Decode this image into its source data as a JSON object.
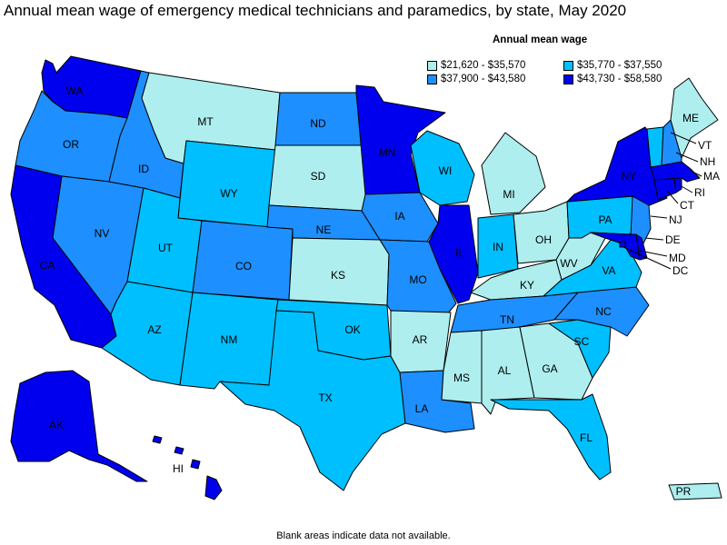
{
  "title": "Annual mean wage of emergency medical technicians and paramedics, by state, May 2020",
  "legend": {
    "title": "Annual mean wage",
    "items": [
      {
        "label": "$21,620 - $35,570",
        "color": "#aeeeee"
      },
      {
        "label": "$35,770 - $37,550",
        "color": "#00bfff"
      },
      {
        "label": "$37,900 - $43,580",
        "color": "#1e8fff"
      },
      {
        "label": "$43,730 - $58,580",
        "color": "#0000ee"
      }
    ]
  },
  "footnote": "Blank areas indicate data not available.",
  "colors": {
    "bin1": "#aeeeee",
    "bin2": "#00bfff",
    "bin3": "#1e8fff",
    "bin4": "#0000ee",
    "border": "#000000"
  },
  "states": [
    {
      "code": "WA",
      "label": "WA",
      "bin": 4
    },
    {
      "code": "OR",
      "label": "OR",
      "bin": 3
    },
    {
      "code": "CA",
      "label": "CA",
      "bin": 4
    },
    {
      "code": "NV",
      "label": "NV",
      "bin": 3
    },
    {
      "code": "ID",
      "label": "ID",
      "bin": 3
    },
    {
      "code": "MT",
      "label": "MT",
      "bin": 1
    },
    {
      "code": "WY",
      "label": "WY",
      "bin": 2
    },
    {
      "code": "UT",
      "label": "UT",
      "bin": 2
    },
    {
      "code": "AZ",
      "label": "AZ",
      "bin": 2
    },
    {
      "code": "CO",
      "label": "CO",
      "bin": 3
    },
    {
      "code": "NM",
      "label": "NM",
      "bin": 2
    },
    {
      "code": "ND",
      "label": "ND",
      "bin": 3
    },
    {
      "code": "SD",
      "label": "SD",
      "bin": 1
    },
    {
      "code": "NE",
      "label": "NE",
      "bin": 3
    },
    {
      "code": "KS",
      "label": "KS",
      "bin": 1
    },
    {
      "code": "OK",
      "label": "OK",
      "bin": 2
    },
    {
      "code": "TX",
      "label": "TX",
      "bin": 2
    },
    {
      "code": "MN",
      "label": "MN",
      "bin": 4
    },
    {
      "code": "IA",
      "label": "IA",
      "bin": 3
    },
    {
      "code": "MO",
      "label": "MO",
      "bin": 3
    },
    {
      "code": "AR",
      "label": "AR",
      "bin": 1
    },
    {
      "code": "LA",
      "label": "LA",
      "bin": 3
    },
    {
      "code": "WI",
      "label": "WI",
      "bin": 2
    },
    {
      "code": "IL",
      "label": "IL",
      "bin": 4
    },
    {
      "code": "MI",
      "label": "MI",
      "bin": 1
    },
    {
      "code": "IN",
      "label": "IN",
      "bin": 2
    },
    {
      "code": "OH",
      "label": "OH",
      "bin": 1
    },
    {
      "code": "KY",
      "label": "KY",
      "bin": 1
    },
    {
      "code": "TN",
      "label": "TN",
      "bin": 3
    },
    {
      "code": "MS",
      "label": "MS",
      "bin": 1
    },
    {
      "code": "AL",
      "label": "AL",
      "bin": 1
    },
    {
      "code": "GA",
      "label": "GA",
      "bin": 1
    },
    {
      "code": "FL",
      "label": "FL",
      "bin": 2
    },
    {
      "code": "SC",
      "label": "SC",
      "bin": 2
    },
    {
      "code": "NC",
      "label": "NC",
      "bin": 3
    },
    {
      "code": "VA",
      "label": "VA",
      "bin": 2
    },
    {
      "code": "WV",
      "label": "WV",
      "bin": 1
    },
    {
      "code": "PA",
      "label": "PA",
      "bin": 2
    },
    {
      "code": "NY",
      "label": "NY",
      "bin": 4
    },
    {
      "code": "NJ",
      "label": "NJ",
      "bin": 3
    },
    {
      "code": "DE",
      "label": "DE",
      "bin": 4
    },
    {
      "code": "MD",
      "label": "MD",
      "bin": 4
    },
    {
      "code": "DC",
      "label": "DC",
      "bin": 4
    },
    {
      "code": "CT",
      "label": "CT",
      "bin": 4
    },
    {
      "code": "RI",
      "label": "RI",
      "bin": 4
    },
    {
      "code": "MA",
      "label": "MA",
      "bin": 4
    },
    {
      "code": "VT",
      "label": "VT",
      "bin": 2
    },
    {
      "code": "NH",
      "label": "NH",
      "bin": 3
    },
    {
      "code": "ME",
      "label": "ME",
      "bin": 1
    },
    {
      "code": "AK",
      "label": "AK",
      "bin": 4
    },
    {
      "code": "HI",
      "label": "HI",
      "bin": 4
    },
    {
      "code": "PR",
      "label": "PR",
      "bin": 1
    }
  ]
}
